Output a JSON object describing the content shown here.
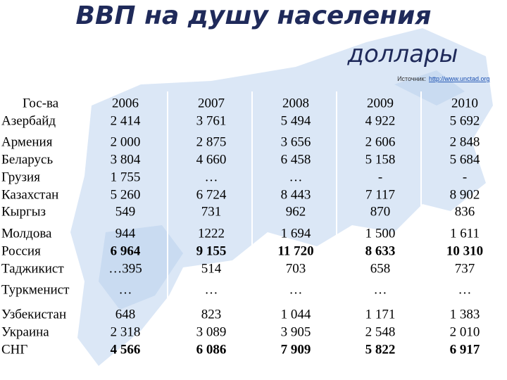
{
  "header": {
    "title": "ВВП на душу населения",
    "subtitle": "доллары",
    "source_label": "Источник:",
    "source_url": "http://www.unctad.org"
  },
  "table": {
    "columns": [
      "Гос-ва",
      "2006",
      "2007",
      "2008",
      "2009",
      "2010"
    ],
    "rows": [
      [
        "Азербайд",
        "2 414",
        "3 761",
        "5 494",
        "4 922",
        "5 692"
      ],
      [
        "Армения",
        "2 000",
        "2 875",
        "3 656",
        "2 606",
        "2 848"
      ],
      [
        "Беларусь",
        "3 804",
        "4 660",
        "6 458",
        "5 158",
        "5 684"
      ],
      [
        "Грузия",
        "1 755",
        "…",
        "…",
        "-",
        "-"
      ],
      [
        "Казахстан",
        "5 260",
        "6 724",
        "8 443",
        "7 117",
        "8 902"
      ],
      [
        "Кыргыз",
        "549",
        "731",
        "962",
        "870",
        "836"
      ],
      [
        "Молдова",
        "944",
        "1222",
        "1 694",
        "1 500",
        "1 611"
      ],
      [
        "Россия",
        "6 964",
        "9 155",
        "11 720",
        "8 633",
        "10 310"
      ],
      [
        "Таджикист",
        "…395",
        "514",
        "703",
        "658",
        "737"
      ],
      [
        "Туркменист",
        "…",
        "…",
        "…",
        "…",
        "…"
      ],
      [
        "Узбекистан",
        "648",
        "823",
        "1 044",
        "1 171",
        "1 383"
      ],
      [
        "Украина",
        "2 318",
        "3 089",
        "3 905",
        "2 548",
        "2 010"
      ],
      [
        "СНГ",
        "4 566",
        "6 086",
        "7 909",
        "5 822",
        "6 917"
      ]
    ]
  }
}
